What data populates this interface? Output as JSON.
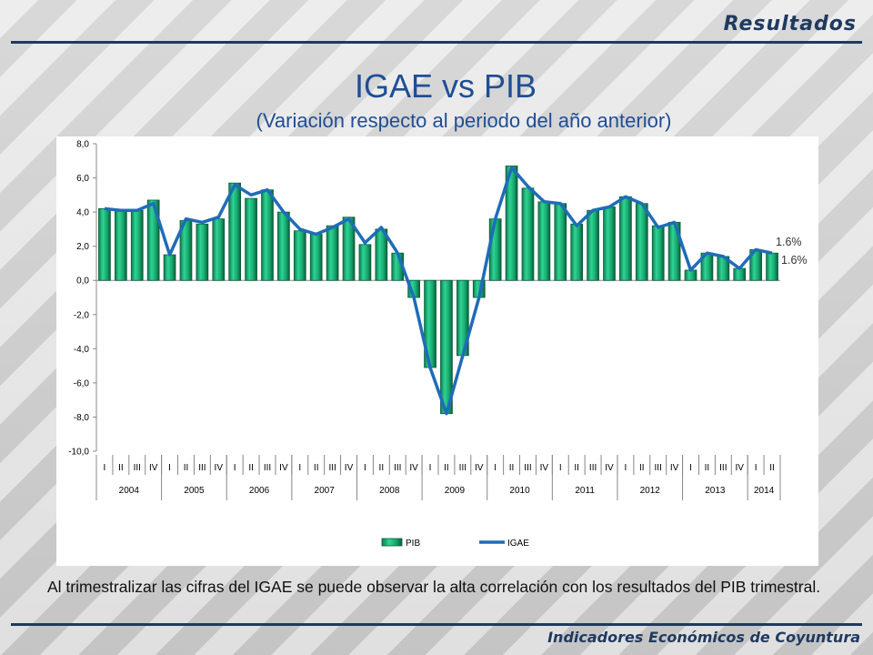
{
  "header": {
    "section": "Resultados"
  },
  "title": "IGAE vs PIB",
  "subtitle": "(Variación  respecto al periodo del año anterior)",
  "note": "Al trimestralizar las cifras del IGAE  se puede observar la alta correlación con los resultados del PIB trimestral.",
  "footer": "Indicadores Económicos de Coyuntura",
  "colors": {
    "accent": "#1f3a5f",
    "title": "#1f4e96",
    "bar": "#19b77a",
    "bar_edge": "#0b5d3b",
    "line": "#1f6cb8"
  },
  "chart_data": {
    "type": "bar",
    "title": "",
    "xlabel": "",
    "ylabel": "",
    "ylim": [
      -10,
      8
    ],
    "yticks": [
      "8,0",
      "6,0",
      "4,0",
      "2,0",
      "0,0",
      "-2,0",
      "-4,0",
      "-6,0",
      "-8,0",
      "-10,0"
    ],
    "categories": [
      "I",
      "II",
      "III",
      "IV",
      "I",
      "II",
      "III",
      "IV",
      "I",
      "II",
      "III",
      "IV",
      "I",
      "II",
      "III",
      "IV",
      "I",
      "II",
      "III",
      "IV",
      "I",
      "II",
      "III",
      "IV",
      "I",
      "II",
      "III",
      "IV",
      "I",
      "II",
      "III",
      "IV",
      "I",
      "II",
      "III",
      "IV",
      "I",
      "II",
      "III",
      "IV",
      "I",
      "II"
    ],
    "years": [
      {
        "label": "2004",
        "quarters": 4
      },
      {
        "label": "2005",
        "quarters": 4
      },
      {
        "label": "2006",
        "quarters": 4
      },
      {
        "label": "2007",
        "quarters": 4
      },
      {
        "label": "2008",
        "quarters": 4
      },
      {
        "label": "2009",
        "quarters": 4
      },
      {
        "label": "2010",
        "quarters": 4
      },
      {
        "label": "2011",
        "quarters": 4
      },
      {
        "label": "2012",
        "quarters": 4
      },
      {
        "label": "2013",
        "quarters": 4
      },
      {
        "label": "2014",
        "quarters": 2
      }
    ],
    "series": [
      {
        "name": "PIB",
        "type": "bar",
        "values": [
          4.2,
          4.1,
          4.1,
          4.7,
          1.5,
          3.5,
          3.3,
          3.6,
          5.7,
          4.8,
          5.3,
          4.0,
          2.9,
          2.7,
          3.2,
          3.7,
          2.1,
          3.0,
          1.6,
          -1.0,
          -5.1,
          -7.8,
          -4.4,
          -1.0,
          3.6,
          6.7,
          5.4,
          4.6,
          4.5,
          3.3,
          4.1,
          4.3,
          4.9,
          4.5,
          3.2,
          3.4,
          0.6,
          1.6,
          1.4,
          0.7,
          1.8,
          1.6
        ]
      },
      {
        "name": "IGAE",
        "type": "line",
        "values": [
          4.2,
          4.1,
          4.1,
          4.5,
          1.5,
          3.6,
          3.4,
          3.7,
          5.6,
          5.0,
          5.3,
          4.0,
          3.0,
          2.7,
          3.1,
          3.6,
          2.2,
          3.1,
          1.6,
          -1.0,
          -5.1,
          -7.8,
          -4.4,
          -1.0,
          3.6,
          6.6,
          5.5,
          4.6,
          4.5,
          3.2,
          4.1,
          4.3,
          4.9,
          4.5,
          3.1,
          3.4,
          0.6,
          1.6,
          1.4,
          0.7,
          1.8,
          1.6
        ]
      }
    ],
    "annotations": [
      "1.6%",
      "1.6%"
    ],
    "legend": "bottom"
  }
}
